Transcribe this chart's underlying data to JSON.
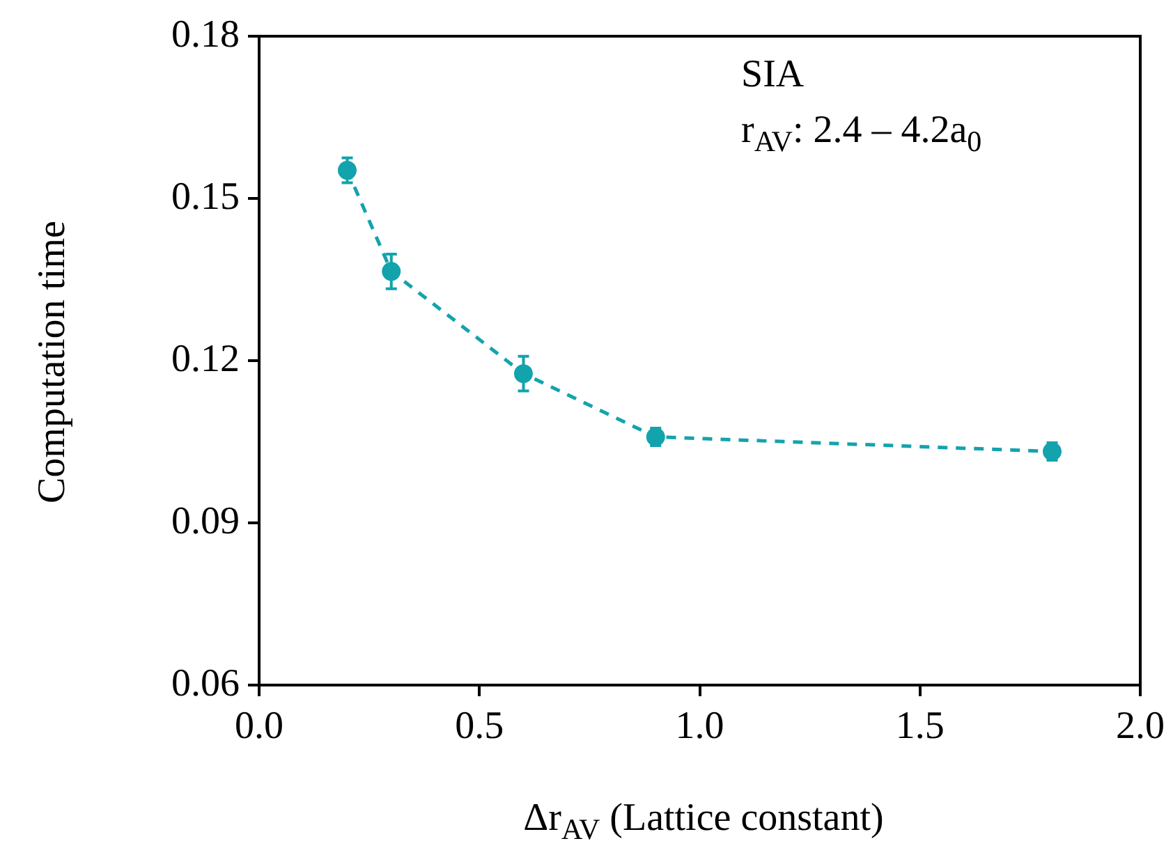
{
  "chart_data": {
    "type": "line",
    "xlabel": "Δr$_{AV}$ (Lattice constant)",
    "ylabel": "Computation time",
    "annotations": [
      "SIA",
      "r$_{AV}$: 2.4 – 4.2a$_{0}$"
    ],
    "x": [
      0.2,
      0.3,
      0.6,
      0.9,
      1.8
    ],
    "series": [
      {
        "color": "#13a3ad",
        "values": [
          0.1552,
          0.1365,
          0.1176,
          0.1059,
          0.1032
        ],
        "errors": [
          0.0023,
          0.0032,
          0.0032,
          0.0016,
          0.0016
        ]
      }
    ],
    "xlim": [
      0,
      2
    ],
    "xticks": [
      {
        "value": 0,
        "label": "0.0"
      },
      {
        "value": 0.5,
        "label": "0.5"
      },
      {
        "value": 1,
        "label": "1.0"
      },
      {
        "value": 1.5,
        "label": "1.5"
      },
      {
        "value": 2,
        "label": "2.0"
      }
    ],
    "ylim": [
      0.06,
      0.18
    ],
    "yticks": [
      {
        "value": 0.06,
        "label": "0.06"
      },
      {
        "value": 0.09,
        "label": "0.09"
      },
      {
        "value": 0.12,
        "label": "0.12"
      },
      {
        "value": 0.15,
        "label": "0.15"
      },
      {
        "value": 0.18,
        "label": "0.18"
      }
    ],
    "grid": false,
    "legend": false,
    "marker": "circle",
    "line_style": "dashed"
  }
}
